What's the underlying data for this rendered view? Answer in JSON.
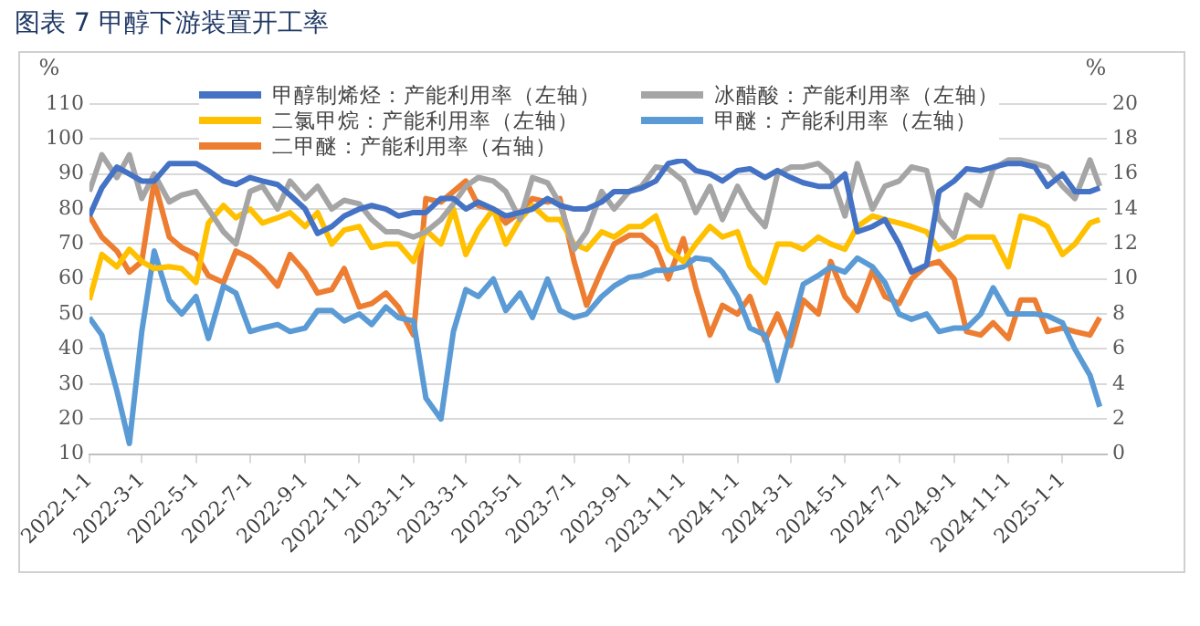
{
  "chart_data": {
    "type": "line",
    "title": "图表 7 甲醇下游装置开工率",
    "x": [
      "2022-01-01",
      "2022-01-15",
      "2022-02-01",
      "2022-02-15",
      "2022-03-01",
      "2022-03-15",
      "2022-04-01",
      "2022-04-15",
      "2022-05-01",
      "2022-05-15",
      "2022-06-01",
      "2022-06-15",
      "2022-07-01",
      "2022-07-15",
      "2022-08-01",
      "2022-08-15",
      "2022-09-01",
      "2022-09-15",
      "2022-10-01",
      "2022-10-15",
      "2022-11-01",
      "2022-11-15",
      "2022-12-01",
      "2022-12-15",
      "2023-01-01",
      "2023-01-15",
      "2023-02-01",
      "2023-02-15",
      "2023-03-01",
      "2023-03-15",
      "2023-04-01",
      "2023-04-15",
      "2023-05-01",
      "2023-05-15",
      "2023-06-01",
      "2023-06-15",
      "2023-07-01",
      "2023-07-15",
      "2023-08-01",
      "2023-08-15",
      "2023-09-01",
      "2023-09-15",
      "2023-10-01",
      "2023-10-15",
      "2023-11-01",
      "2023-11-15",
      "2023-12-01",
      "2023-12-15",
      "2024-01-01",
      "2024-01-15",
      "2024-02-01",
      "2024-02-15",
      "2024-03-01",
      "2024-03-15",
      "2024-04-01",
      "2024-04-15",
      "2024-05-01",
      "2024-05-15",
      "2024-06-01",
      "2024-06-15",
      "2024-07-01",
      "2024-07-15",
      "2024-08-01",
      "2024-08-15",
      "2024-09-01",
      "2024-09-15",
      "2024-10-01",
      "2024-10-15",
      "2024-11-01",
      "2024-11-15",
      "2024-12-01",
      "2024-12-15",
      "2025-01-01",
      "2025-01-15",
      "2025-02-01",
      "2025-02-12"
    ],
    "series": [
      {
        "name": "甲醇制烯烃：产能利用率（左轴）",
        "color": "#4472c4",
        "values": [
          78,
          86,
          92,
          90,
          88,
          88,
          93,
          93,
          93,
          91,
          88,
          87,
          89,
          88,
          87,
          84,
          80,
          73,
          75,
          78,
          80,
          81,
          80,
          78,
          79,
          79,
          83,
          83,
          80,
          82,
          80,
          78,
          79,
          80,
          83,
          81,
          80,
          80,
          82,
          85,
          85,
          86,
          88,
          93,
          94,
          91,
          90,
          88,
          91,
          91.5,
          89,
          91,
          89,
          87.5,
          86.5,
          86.5,
          90,
          73.5,
          75,
          77,
          70,
          62,
          64,
          85,
          88,
          91.5,
          91,
          92,
          93,
          93,
          92,
          86.5,
          90,
          85,
          85,
          86
        ]
      },
      {
        "name": "冰醋酸：产能利用率（左轴）",
        "color": "#a5a5a5",
        "values": [
          85,
          95.5,
          89,
          95.5,
          83,
          90,
          82,
          84,
          85,
          80,
          73.5,
          70,
          85,
          86.5,
          80,
          88,
          83,
          86.5,
          80,
          82.5,
          81.5,
          77,
          73.5,
          73.5,
          72,
          73.5,
          77,
          81.5,
          86.5,
          89,
          88,
          85,
          77,
          89,
          87.5,
          81.5,
          68.5,
          73.5,
          85,
          80,
          85,
          86.5,
          92,
          91.5,
          88,
          79,
          86.5,
          77,
          86.5,
          80,
          75,
          90,
          92,
          92,
          93,
          90,
          78,
          93,
          80,
          86.5,
          88,
          92,
          91,
          77,
          72,
          84,
          81,
          91.5,
          94,
          94,
          93,
          92,
          86.5,
          83,
          94,
          86.5
        ]
      },
      {
        "name": "二氯甲烷：产能利用率（左轴）",
        "color": "#ffc000",
        "values": [
          54,
          67,
          63.5,
          68.5,
          65,
          63,
          63.5,
          63,
          59,
          76,
          81,
          77.5,
          80,
          76,
          77.5,
          79,
          75,
          79,
          70,
          74,
          75,
          69,
          70,
          70,
          65,
          74,
          70,
          80,
          67,
          74,
          80,
          70,
          77,
          81,
          77,
          77,
          70,
          68.5,
          73.5,
          72,
          75,
          75,
          78,
          68.5,
          65,
          70,
          75,
          72,
          73.5,
          63.5,
          59,
          70,
          70,
          68.5,
          72,
          70,
          68.5,
          75,
          78,
          77,
          76,
          75,
          73.5,
          68.5,
          70,
          72,
          72,
          72,
          63.5,
          78,
          77,
          75,
          67,
          70,
          76,
          77
        ]
      },
      {
        "name": "甲醚：产能利用率（左轴）",
        "color": "#5b9bd5",
        "values": [
          49,
          44,
          28,
          13,
          45,
          68,
          54,
          50,
          55,
          43,
          58,
          56,
          45,
          46,
          47,
          45,
          46,
          51,
          51,
          48,
          50,
          47,
          52,
          49,
          48,
          26,
          20,
          45,
          57,
          55,
          60,
          51,
          56,
          49,
          60,
          51,
          49,
          50,
          55,
          58,
          60.5,
          61,
          62.5,
          62.5,
          63.5,
          66,
          65.5,
          62,
          55,
          46,
          44,
          31,
          45,
          58.5,
          61,
          63.5,
          62,
          66,
          63.5,
          59,
          50,
          48.5,
          50,
          45,
          46,
          46,
          50,
          57.5,
          50,
          50,
          50,
          49.5,
          47.5,
          40,
          32.5,
          23.5
        ]
      },
      {
        "name": "二甲醚：产能利用率（右轴）",
        "color": "#ed7d31",
        "axis": "y2",
        "values": [
          13.6,
          12.4,
          11.6,
          10.4,
          11,
          15.6,
          12.4,
          11.8,
          11.4,
          10.2,
          9.8,
          11.6,
          11.2,
          10.6,
          9.6,
          11.4,
          10.4,
          9.2,
          9.4,
          10.6,
          8.4,
          8.6,
          9.2,
          8.4,
          6.8,
          14.6,
          14.4,
          15,
          15.6,
          14.2,
          14,
          13.2,
          13.8,
          14.6,
          14.4,
          14.6,
          11,
          8.5,
          10.5,
          12,
          12.5,
          12.5,
          11.8,
          10,
          12.3,
          9.5,
          6.8,
          8.5,
          8,
          9,
          6.5,
          8,
          6.2,
          8.8,
          8,
          11,
          9,
          8.2,
          10.5,
          9,
          8.6,
          10,
          10.8,
          11,
          10,
          7,
          6.8,
          7.5,
          6.6,
          8.8,
          8.8,
          7,
          7.2,
          7,
          6.8,
          7.8
        ]
      }
    ],
    "xlim": [
      "2022-01-01",
      "2025-02-20"
    ],
    "xticks": [
      {
        "value": "2022-01-01",
        "label": "2022-1-1"
      },
      {
        "value": "2022-03-01",
        "label": "2022-3-1"
      },
      {
        "value": "2022-05-01",
        "label": "2022-5-1"
      },
      {
        "value": "2022-07-01",
        "label": "2022-7-1"
      },
      {
        "value": "2022-09-01",
        "label": "2022-9-1"
      },
      {
        "value": "2022-11-01",
        "label": "2022-11-1"
      },
      {
        "value": "2023-01-01",
        "label": "2023-1-1"
      },
      {
        "value": "2023-03-01",
        "label": "2023-3-1"
      },
      {
        "value": "2023-05-01",
        "label": "2023-5-1"
      },
      {
        "value": "2023-07-01",
        "label": "2023-7-1"
      },
      {
        "value": "2023-09-01",
        "label": "2023-9-1"
      },
      {
        "value": "2023-11-01",
        "label": "2023-11-1"
      },
      {
        "value": "2024-01-01",
        "label": "2024-1-1"
      },
      {
        "value": "2024-03-01",
        "label": "2024-3-1"
      },
      {
        "value": "2024-05-01",
        "label": "2024-5-1"
      },
      {
        "value": "2024-07-01",
        "label": "2024-7-1"
      },
      {
        "value": "2024-09-01",
        "label": "2024-9-1"
      },
      {
        "value": "2024-11-01",
        "label": "2024-11-1"
      },
      {
        "value": "2025-01-01",
        "label": "2025-1-1"
      }
    ],
    "ylabel": "%",
    "y2label": "%",
    "ylim": [
      10,
      110
    ],
    "yticks": [
      10,
      20,
      30,
      40,
      50,
      60,
      70,
      80,
      90,
      100,
      110
    ],
    "y2lim": [
      0,
      20
    ],
    "y2ticks": [
      0,
      2,
      4,
      6,
      8,
      10,
      12,
      14,
      16,
      18,
      20
    ],
    "grid": "y",
    "legend": "top",
    "marker": "none",
    "line_style": "solid"
  }
}
